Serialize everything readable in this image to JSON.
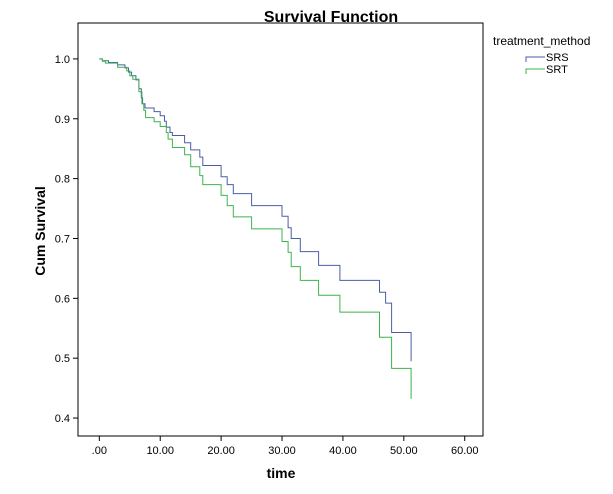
{
  "chart_data": {
    "type": "line",
    "step": true,
    "title": "Survival Function",
    "xlabel": "time",
    "ylabel": "Cum Survival",
    "xlim": [
      -3.5,
      63
    ],
    "ylim": [
      0.37,
      1.06
    ],
    "xticks": [
      0,
      10,
      20,
      30,
      40,
      50,
      60
    ],
    "xtick_labels": [
      ".00",
      "10.00",
      "20.00",
      "30.00",
      "40.00",
      "50.00",
      "60.00"
    ],
    "yticks": [
      0.4,
      0.5,
      0.6,
      0.7,
      0.8,
      0.9,
      1.0
    ],
    "ytick_labels": [
      "0.4",
      "0.5",
      "0.6",
      "0.7",
      "0.8",
      "0.9",
      "1.0"
    ],
    "grid": false,
    "legend": {
      "title": "treatment_method",
      "placement": "top-right"
    },
    "series": [
      {
        "name": "SRS",
        "color": "#4a5ea8",
        "points": [
          [
            0,
            1.0
          ],
          [
            0.5,
            0.997
          ],
          [
            1.5,
            0.994
          ],
          [
            3.0,
            0.99
          ],
          [
            4.2,
            0.985
          ],
          [
            4.8,
            0.978
          ],
          [
            5.3,
            0.972
          ],
          [
            6.0,
            0.965
          ],
          [
            6.5,
            0.95
          ],
          [
            6.9,
            0.935
          ],
          [
            7.1,
            0.925
          ],
          [
            7.5,
            0.918
          ],
          [
            9.0,
            0.912
          ],
          [
            10.0,
            0.905
          ],
          [
            10.7,
            0.896
          ],
          [
            11.0,
            0.886
          ],
          [
            11.6,
            0.877
          ],
          [
            12.0,
            0.872
          ],
          [
            14.0,
            0.86
          ],
          [
            15.0,
            0.848
          ],
          [
            16.5,
            0.836
          ],
          [
            17.0,
            0.822
          ],
          [
            20.0,
            0.803
          ],
          [
            21.0,
            0.79
          ],
          [
            22.0,
            0.775
          ],
          [
            25.0,
            0.755
          ],
          [
            30.0,
            0.737
          ],
          [
            31.0,
            0.718
          ],
          [
            31.5,
            0.7
          ],
          [
            33.0,
            0.678
          ],
          [
            36.0,
            0.655
          ],
          [
            39.5,
            0.63
          ],
          [
            46.0,
            0.61
          ],
          [
            47.0,
            0.592
          ],
          [
            48.0,
            0.543
          ],
          [
            51.2,
            0.495
          ]
        ],
        "end_x": 51.2
      },
      {
        "name": "SRT",
        "color": "#3cb44b",
        "points": [
          [
            0,
            1.0
          ],
          [
            0.5,
            0.996
          ],
          [
            1.0,
            0.993
          ],
          [
            3.0,
            0.986
          ],
          [
            4.5,
            0.98
          ],
          [
            5.0,
            0.972
          ],
          [
            5.5,
            0.966
          ],
          [
            6.5,
            0.945
          ],
          [
            7.0,
            0.925
          ],
          [
            7.3,
            0.914
          ],
          [
            7.6,
            0.902
          ],
          [
            9.0,
            0.895
          ],
          [
            10.0,
            0.887
          ],
          [
            11.0,
            0.877
          ],
          [
            11.3,
            0.866
          ],
          [
            12.0,
            0.852
          ],
          [
            14.0,
            0.84
          ],
          [
            15.0,
            0.82
          ],
          [
            16.5,
            0.805
          ],
          [
            17.0,
            0.79
          ],
          [
            20.0,
            0.772
          ],
          [
            21.0,
            0.755
          ],
          [
            22.0,
            0.736
          ],
          [
            25.0,
            0.716
          ],
          [
            30.0,
            0.695
          ],
          [
            31.0,
            0.677
          ],
          [
            31.5,
            0.653
          ],
          [
            33.0,
            0.63
          ],
          [
            36.0,
            0.605
          ],
          [
            39.5,
            0.577
          ],
          [
            46.0,
            0.535
          ],
          [
            48.0,
            0.483
          ],
          [
            51.2,
            0.432
          ]
        ],
        "end_x": 51.2
      }
    ]
  }
}
